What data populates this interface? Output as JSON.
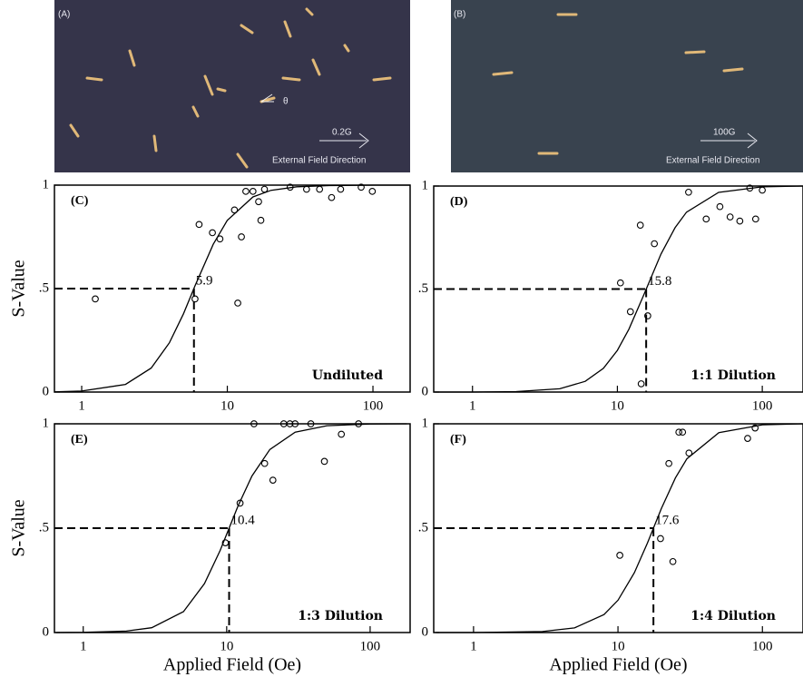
{
  "images": [
    {
      "label": "(A)",
      "field": "0.2G",
      "caption": "External Field Direction",
      "angle_symbol": "θ"
    },
    {
      "label": "(B)",
      "field": "100G",
      "caption": "External Field Direction"
    }
  ],
  "chart_data": [
    {
      "type": "scatter",
      "panel": "(C)",
      "note": "Undiluted",
      "midpoint": 5.9,
      "log_x": true,
      "ylabel": "S-Value",
      "xlim": [
        0.65,
        180
      ],
      "ylim": [
        0,
        1
      ],
      "xticks": [
        1,
        10,
        100
      ],
      "yticks": [
        0,
        {
          "value": 0.5,
          "label": ".5"
        },
        1
      ],
      "color": "#000000",
      "x": [
        1.24,
        6.4,
        6.0,
        7.9,
        8.9,
        12.5,
        11.2,
        11.8,
        13.4,
        15,
        16.4,
        17,
        18,
        27,
        35,
        43,
        52,
        60,
        83,
        99
      ],
      "values": [
        0.45,
        0.81,
        0.45,
        0.77,
        0.74,
        0.75,
        0.88,
        0.43,
        0.97,
        0.97,
        0.92,
        0.83,
        0.98,
        0.99,
        0.98,
        0.98,
        0.94,
        0.98,
        0.99,
        0.97
      ],
      "fit": {
        "x": [
          0.65,
          1,
          2,
          3,
          4,
          5,
          6,
          8,
          10,
          15,
          20,
          30,
          50,
          100,
          180
        ],
        "values": [
          0.001,
          0.005,
          0.037,
          0.116,
          0.238,
          0.378,
          0.513,
          0.714,
          0.83,
          0.943,
          0.975,
          0.992,
          0.998,
          1,
          1
        ]
      }
    },
    {
      "type": "scatter",
      "panel": "(D)",
      "note": "1:1 Dilution",
      "midpoint": 15.8,
      "log_x": true,
      "xlim": [
        0.54,
        191
      ],
      "ylim": [
        0,
        1
      ],
      "xticks": [
        1,
        10,
        100
      ],
      "yticks": [
        0,
        {
          "value": 0.5,
          "label": ".5"
        },
        1
      ],
      "color": "#000000",
      "x": [
        10.5,
        12.3,
        14.4,
        16.2,
        14.6,
        18,
        31,
        41,
        51,
        60,
        70,
        82,
        90,
        100
      ],
      "values": [
        0.53,
        0.39,
        0.81,
        0.37,
        0.04,
        0.72,
        0.97,
        0.84,
        0.9,
        0.85,
        0.83,
        0.99,
        0.84,
        0.98
      ],
      "fit": {
        "x": [
          0.55,
          1,
          2,
          4,
          6,
          8,
          10,
          12,
          15,
          20,
          25,
          30,
          50,
          100,
          190
        ],
        "values": [
          0,
          0,
          0.002,
          0.016,
          0.052,
          0.115,
          0.202,
          0.305,
          0.461,
          0.67,
          0.798,
          0.873,
          0.969,
          0.996,
          1
        ]
      }
    },
    {
      "type": "scatter",
      "panel": "(E)",
      "note": "1:3 Dilution",
      "midpoint": 10.4,
      "log_x": true,
      "ylabel": "S-Value",
      "xlabel": "Applied Field (Oe)",
      "xlim": [
        0.63,
        190
      ],
      "ylim": [
        0,
        1
      ],
      "xticks": [
        1,
        10,
        100
      ],
      "yticks": [
        0,
        {
          "value": 0.5,
          "label": ".5"
        },
        1
      ],
      "color": "#000000",
      "x": [
        9.8,
        12.4,
        15.5,
        18.4,
        21,
        25,
        27.6,
        30,
        38.6,
        48,
        63,
        83
      ],
      "values": [
        0.43,
        0.62,
        1,
        0.81,
        0.73,
        1,
        1,
        1,
        1,
        0.82,
        0.95,
        1
      ],
      "fit": {
        "x": [
          0.65,
          1,
          2,
          3,
          5,
          7,
          9,
          10.4,
          12,
          15,
          20,
          30,
          50,
          100,
          180
        ],
        "values": [
          0,
          0.001,
          0.007,
          0.023,
          0.1,
          0.234,
          0.393,
          0.5,
          0.606,
          0.75,
          0.877,
          0.96,
          0.991,
          0.999,
          1
        ]
      }
    },
    {
      "type": "scatter",
      "panel": "(F)",
      "note": "1:4 Dilution",
      "midpoint": 17.6,
      "log_x": true,
      "xlabel": "Applied Field (Oe)",
      "xlim": [
        0.53,
        191
      ],
      "ylim": [
        0,
        1
      ],
      "xticks": [
        1,
        10,
        100
      ],
      "yticks": [
        0,
        {
          "value": 0.5,
          "label": ".5"
        },
        1
      ],
      "color": "#000000",
      "x": [
        10.3,
        19.7,
        22.5,
        24,
        26.4,
        28,
        31,
        79,
        89
      ],
      "values": [
        0.37,
        0.45,
        0.81,
        0.34,
        0.96,
        0.96,
        0.86,
        0.93,
        0.98
      ],
      "fit": {
        "x": [
          0.55,
          1,
          3,
          5,
          8,
          10,
          13,
          16,
          20,
          25,
          30,
          50,
          100,
          190
        ],
        "values": [
          0,
          0,
          0.005,
          0.022,
          0.086,
          0.155,
          0.287,
          0.429,
          0.595,
          0.741,
          0.832,
          0.958,
          0.995,
          1
        ]
      }
    }
  ]
}
